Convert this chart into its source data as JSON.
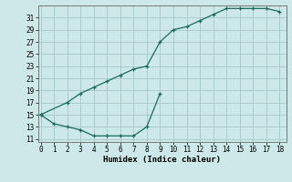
{
  "xlabel": "Humidex (Indice chaleur)",
  "bg_color": "#cce8e8",
  "grid_color": "#aacccc",
  "line_color": "#1a6b5a",
  "upper_x": [
    0,
    2,
    3,
    4,
    5,
    6,
    7,
    8,
    9,
    10,
    11,
    12,
    13,
    14,
    15,
    16,
    17,
    18
  ],
  "upper_y": [
    15,
    17,
    18.5,
    19.5,
    20.5,
    21.5,
    22.5,
    23,
    27,
    29,
    29.5,
    30.5,
    31.5,
    32.5,
    32.5,
    32.5,
    32.5,
    32
  ],
  "lower_x": [
    0,
    1,
    2,
    3,
    4,
    5,
    6,
    7,
    8,
    9
  ],
  "lower_y": [
    15,
    13.5,
    13,
    12.5,
    11.5,
    11.5,
    11.5,
    11.5,
    13,
    18.5
  ],
  "xlim": [
    -0.2,
    18.5
  ],
  "ylim": [
    10.5,
    33.0
  ],
  "xticks": [
    0,
    1,
    2,
    3,
    4,
    5,
    6,
    7,
    8,
    9,
    10,
    11,
    12,
    13,
    14,
    15,
    16,
    17,
    18
  ],
  "yticks": [
    11,
    13,
    15,
    17,
    19,
    21,
    23,
    25,
    27,
    29,
    31
  ],
  "tick_fontsize": 5.5,
  "xlabel_fontsize": 6.5
}
